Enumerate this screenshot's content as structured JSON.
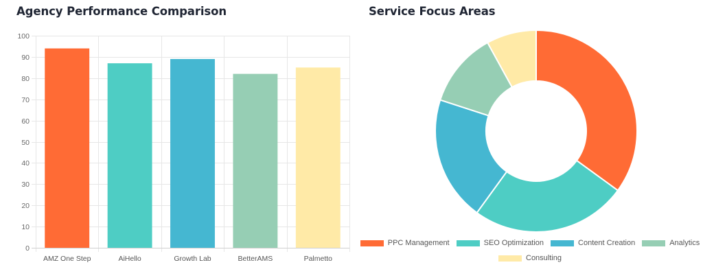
{
  "bar_chart": {
    "title": "Agency Performance Comparison"
  },
  "donut_chart": {
    "title": "Service Focus Areas"
  },
  "chart_data": [
    {
      "type": "bar",
      "title": "Agency Performance Comparison",
      "categories": [
        "AMZ One Step",
        "AiHello",
        "Growth Lab",
        "BetterAMS",
        "Palmetto"
      ],
      "values": [
        94,
        87,
        89,
        82,
        85
      ],
      "colors": [
        "#ff6b35",
        "#4ecdc4",
        "#45b7d1",
        "#96ceb4",
        "#ffeaa7"
      ],
      "ylim": [
        0,
        100
      ],
      "yticks": [
        0,
        10,
        20,
        30,
        40,
        50,
        60,
        70,
        80,
        90,
        100
      ],
      "xlabel": "",
      "ylabel": "",
      "grid": true,
      "legend": "none"
    },
    {
      "type": "pie",
      "variant": "doughnut",
      "title": "Service Focus Areas",
      "labels": [
        "PPC Management",
        "SEO Optimization",
        "Content Creation",
        "Analytics",
        "Consulting"
      ],
      "values": [
        35,
        25,
        20,
        12,
        8
      ],
      "colors": [
        "#ff6b35",
        "#4ecdc4",
        "#45b7d1",
        "#96ceb4",
        "#ffeaa7"
      ],
      "legend": "bottom"
    }
  ]
}
